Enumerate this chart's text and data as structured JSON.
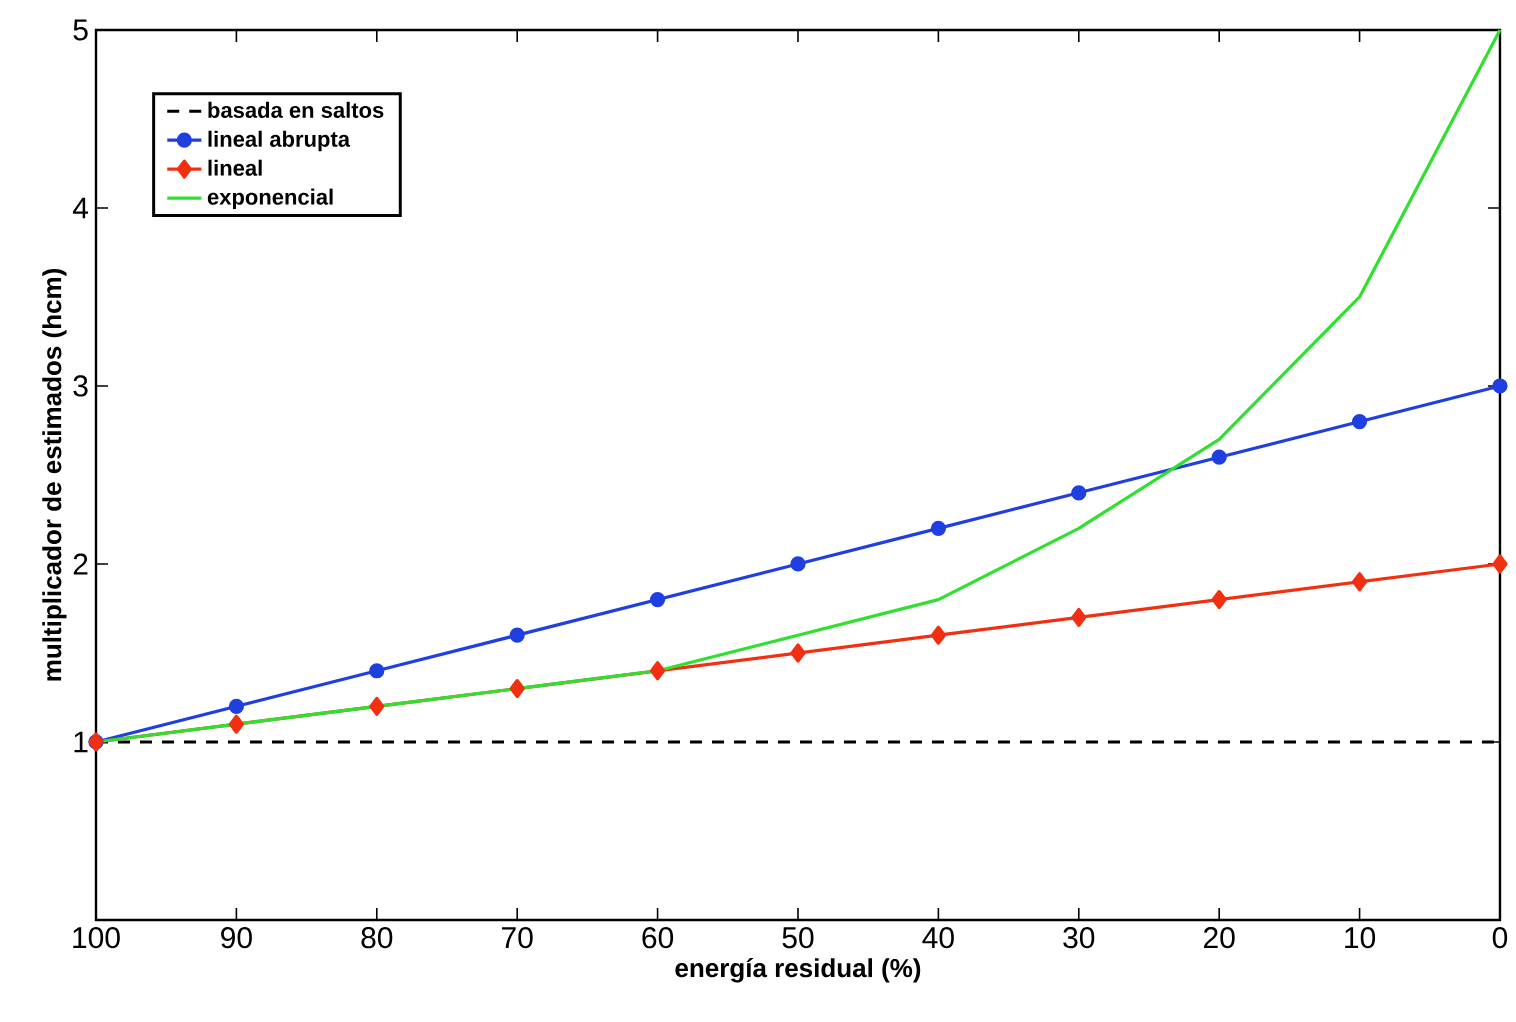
{
  "chart_data": {
    "type": "line",
    "xlabel": "energía residual (%)",
    "ylabel": "multiplicador de estimados (hcm)",
    "x": [
      100,
      90,
      80,
      70,
      60,
      50,
      40,
      30,
      20,
      10,
      0
    ],
    "xlim": [
      100,
      0
    ],
    "xticks": [
      100,
      90,
      80,
      70,
      60,
      50,
      40,
      30,
      20,
      10,
      0
    ],
    "ylim": [
      0,
      5
    ],
    "yticks": [
      {
        "value": 0,
        "label": null
      },
      1,
      2,
      3,
      4,
      5
    ],
    "legend": "top left",
    "grid": false,
    "series": [
      {
        "name": "basada en saltos",
        "color": "#000000",
        "line_style": "dashed",
        "marker": "none",
        "values": [
          1,
          1,
          1,
          1,
          1,
          1,
          1,
          1,
          1,
          1,
          1
        ]
      },
      {
        "name": "lineal abrupta",
        "color": "#1f3fe0",
        "line_style": "solid",
        "marker": "circle",
        "values": [
          1,
          1.2,
          1.4,
          1.6,
          1.8,
          2.0,
          2.2,
          2.4,
          2.6,
          2.8,
          3.0
        ]
      },
      {
        "name": "lineal",
        "color": "#f03010",
        "line_style": "solid",
        "marker": "diamond",
        "values": [
          1,
          1.1,
          1.2,
          1.3,
          1.4,
          1.5,
          1.6,
          1.7,
          1.8,
          1.9,
          2.0
        ]
      },
      {
        "name": "exponencial",
        "color": "#30e030",
        "line_style": "solid",
        "marker": "none",
        "values": [
          1,
          1.1,
          1.2,
          1.3,
          1.4,
          1.6,
          1.8,
          2.2,
          2.7,
          3.5,
          5.0
        ]
      }
    ]
  }
}
